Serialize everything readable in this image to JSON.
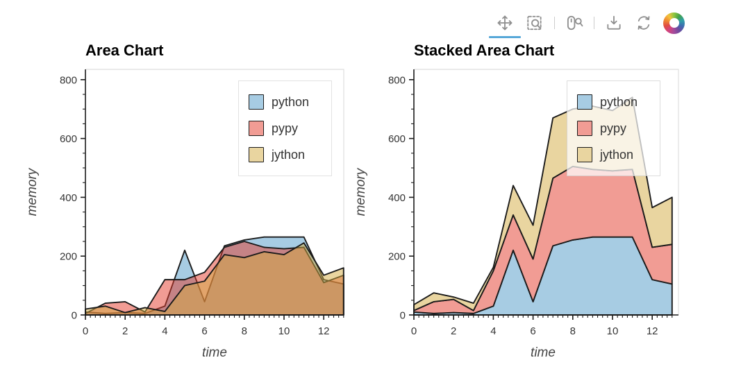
{
  "toolbar": {
    "tools": [
      {
        "name": "pan",
        "icon": "move-arrows-icon",
        "active": true
      },
      {
        "name": "box-zoom",
        "icon": "box-zoom-magnifier-icon",
        "active": false
      },
      {
        "name": "wheel-zoom",
        "icon": "mouse-wheel-zoom-icon",
        "active": false
      },
      {
        "name": "save",
        "icon": "download-icon",
        "active": false
      },
      {
        "name": "reset",
        "icon": "refresh-icon",
        "active": false
      }
    ],
    "logo": "bokeh-logo",
    "icon_color": "#8f8f8f",
    "active_underline_color": "#57a8d8"
  },
  "chart_data": [
    {
      "type": "area",
      "title": "Area Chart",
      "stacked": false,
      "xlabel": "time",
      "ylabel": "memory",
      "x": [
        0,
        1,
        2,
        3,
        4,
        5,
        6,
        7,
        8,
        9,
        10,
        11,
        12,
        13
      ],
      "series": [
        {
          "name": "python",
          "color": "#4f99c7",
          "fill_alpha": 0.5,
          "values": [
            10,
            5,
            8,
            5,
            30,
            220,
            45,
            235,
            255,
            265,
            265,
            265,
            120,
            105
          ]
        },
        {
          "name": "pypy",
          "color": "#e33929",
          "fill_alpha": 0.5,
          "values": [
            5,
            40,
            45,
            10,
            120,
            120,
            145,
            230,
            250,
            230,
            225,
            230,
            110,
            135
          ]
        },
        {
          "name": "jython",
          "color": "#d3ab41",
          "fill_alpha": 0.5,
          "values": [
            20,
            30,
            8,
            25,
            12,
            100,
            115,
            205,
            195,
            215,
            205,
            245,
            135,
            160
          ]
        }
      ],
      "outline_color": "#1a1a1a",
      "xticks": [
        0,
        2,
        4,
        6,
        8,
        10,
        12
      ],
      "yticks": [
        0,
        200,
        400,
        600,
        800
      ],
      "xlim": [
        0,
        13
      ],
      "ylim": [
        0,
        835
      ],
      "x_minor_step": 0.25,
      "y_minor_step": 50,
      "grid": false,
      "legend": {
        "position": "top-right",
        "labels": [
          "python",
          "pypy",
          "jython"
        ]
      }
    },
    {
      "type": "area",
      "title": "Stacked Area Chart",
      "stacked": true,
      "xlabel": "time",
      "ylabel": "memory",
      "x": [
        0,
        1,
        2,
        3,
        4,
        5,
        6,
        7,
        8,
        9,
        10,
        11,
        12,
        13
      ],
      "series": [
        {
          "name": "python",
          "color": "#4f99c7",
          "fill_alpha": 0.5,
          "values": [
            10,
            5,
            8,
            5,
            30,
            220,
            45,
            235,
            255,
            265,
            265,
            265,
            120,
            105
          ]
        },
        {
          "name": "pypy",
          "color": "#e33929",
          "fill_alpha": 0.5,
          "values": [
            5,
            40,
            45,
            10,
            120,
            120,
            145,
            230,
            250,
            230,
            225,
            230,
            110,
            135
          ]
        },
        {
          "name": "jython",
          "color": "#d3ab41",
          "fill_alpha": 0.5,
          "values": [
            20,
            30,
            8,
            25,
            12,
            100,
            115,
            205,
            195,
            215,
            205,
            245,
            135,
            160
          ]
        }
      ],
      "outline_color": "#1a1a1a",
      "xticks": [
        0,
        2,
        4,
        6,
        8,
        10,
        12
      ],
      "yticks": [
        0,
        200,
        400,
        600,
        800
      ],
      "xlim": [
        0,
        13
      ],
      "ylim": [
        0,
        835
      ],
      "x_minor_step": 0.25,
      "y_minor_step": 50,
      "grid": false,
      "legend": {
        "position": "top-right",
        "labels": [
          "python",
          "pypy",
          "jython"
        ]
      }
    }
  ]
}
